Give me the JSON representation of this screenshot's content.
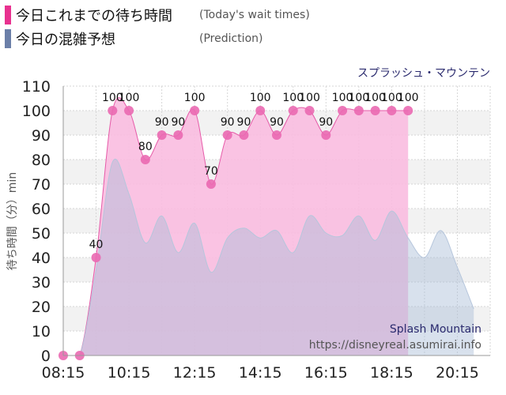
{
  "legend": [
    {
      "label": "今日これまでの待ち時間",
      "label_en": "(Today's wait times)",
      "color": "#e8318f"
    },
    {
      "label": "今日の混雑予想",
      "label_en": "(Prediction)",
      "color": "#6b7fa8"
    }
  ],
  "attraction_name": "スプラッシュ・マウンテン",
  "watermark": {
    "name_en": "Splash Mountain",
    "url": "https://disneyreal.asumirai.info"
  },
  "chart_data": {
    "type": "area",
    "ylabel": "待ち時間（分）min",
    "ylim": [
      0,
      110
    ],
    "yticks": [
      0,
      10,
      20,
      30,
      40,
      50,
      60,
      70,
      80,
      90,
      100,
      110
    ],
    "xlim": [
      "08:15",
      "21:15"
    ],
    "xtick_labels": [
      "08:15",
      "10:15",
      "12:15",
      "14:15",
      "16:15",
      "18:15",
      "20:15"
    ],
    "grid": true,
    "series": [
      {
        "name": "今日これまでの待ち時間",
        "color": "#ee6fb5",
        "points": [
          {
            "x": "08:15",
            "y": 0
          },
          {
            "x": "08:45",
            "y": 0
          },
          {
            "x": "09:15",
            "y": 40
          },
          {
            "x": "09:45",
            "y": 100
          },
          {
            "x": "10:15",
            "y": 100
          },
          {
            "x": "10:45",
            "y": 80
          },
          {
            "x": "11:15",
            "y": 90
          },
          {
            "x": "11:45",
            "y": 90
          },
          {
            "x": "12:15",
            "y": 100
          },
          {
            "x": "12:45",
            "y": 70
          },
          {
            "x": "13:15",
            "y": 90
          },
          {
            "x": "13:45",
            "y": 90
          },
          {
            "x": "14:15",
            "y": 100
          },
          {
            "x": "14:45",
            "y": 90
          },
          {
            "x": "15:15",
            "y": 100
          },
          {
            "x": "15:45",
            "y": 100
          },
          {
            "x": "16:15",
            "y": 90
          },
          {
            "x": "16:45",
            "y": 100
          },
          {
            "x": "17:15",
            "y": 100
          },
          {
            "x": "17:45",
            "y": 100
          },
          {
            "x": "18:15",
            "y": 100
          },
          {
            "x": "18:45",
            "y": 100
          }
        ]
      },
      {
        "name": "今日の混雑予想",
        "color": "#a9bcd6",
        "points": [
          {
            "x": "08:15",
            "y": 0
          },
          {
            "x": "08:45",
            "y": 0
          },
          {
            "x": "09:15",
            "y": 35
          },
          {
            "x": "09:45",
            "y": 79
          },
          {
            "x": "10:15",
            "y": 66
          },
          {
            "x": "10:45",
            "y": 46
          },
          {
            "x": "11:15",
            "y": 57
          },
          {
            "x": "11:45",
            "y": 42
          },
          {
            "x": "12:15",
            "y": 54
          },
          {
            "x": "12:45",
            "y": 34
          },
          {
            "x": "13:15",
            "y": 48
          },
          {
            "x": "13:45",
            "y": 52
          },
          {
            "x": "14:15",
            "y": 48
          },
          {
            "x": "14:45",
            "y": 51
          },
          {
            "x": "15:15",
            "y": 42
          },
          {
            "x": "15:45",
            "y": 57
          },
          {
            "x": "16:15",
            "y": 50
          },
          {
            "x": "16:45",
            "y": 49
          },
          {
            "x": "17:15",
            "y": 57
          },
          {
            "x": "17:45",
            "y": 47
          },
          {
            "x": "18:15",
            "y": 59
          },
          {
            "x": "18:45",
            "y": 48
          },
          {
            "x": "19:15",
            "y": 40
          },
          {
            "x": "19:45",
            "y": 51
          },
          {
            "x": "20:15",
            "y": 36
          },
          {
            "x": "20:45",
            "y": 19
          }
        ]
      }
    ]
  }
}
